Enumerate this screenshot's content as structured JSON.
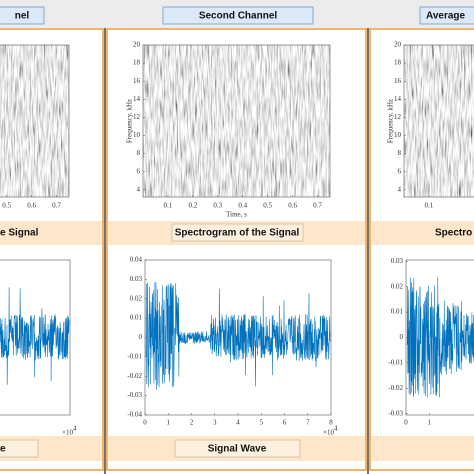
{
  "header": {
    "tabs": [
      "nel",
      "Second Channel",
      "Average"
    ]
  },
  "panels": [
    {
      "spectrogram": {
        "xlim": [
          0,
          0.75
        ],
        "ylim": [
          3.2,
          20
        ],
        "xticks": [
          0.5,
          0.6,
          0.7
        ],
        "yticks": []
      },
      "spectrogram_label": "e Signal",
      "wave": {
        "xlim": [
          0,
          8
        ],
        "ylim": [
          -0.04,
          0.04
        ],
        "xticks": [],
        "yticks": [],
        "x_exponent_base": "×10",
        "x_exponent": "4"
      },
      "wave_label": "e"
    },
    {
      "spectrogram": {
        "xlim": [
          0,
          0.75
        ],
        "ylim": [
          3.2,
          20
        ],
        "xticks": [
          0.1,
          0.2,
          0.3,
          0.4,
          0.5,
          0.6,
          0.7
        ],
        "yticks": [
          4,
          6,
          8,
          10,
          12,
          14,
          16,
          18,
          20
        ],
        "xlabel": "Time, s",
        "ylabel": "Frequency, kHz"
      },
      "spectrogram_label": "Spectrogram of the Signal",
      "wave": {
        "xlim": [
          0,
          8
        ],
        "ylim": [
          -0.04,
          0.04
        ],
        "xticks": [
          0,
          1,
          2,
          3,
          4,
          5,
          6,
          7,
          8
        ],
        "yticks": [
          -0.04,
          -0.03,
          -0.02,
          -0.01,
          0,
          0.01,
          0.02,
          0.03,
          0.04
        ],
        "x_exponent_base": "×10",
        "x_exponent": "4"
      },
      "wave_label": "Signal Wave"
    },
    {
      "spectrogram": {
        "xlim": [
          0,
          0.75
        ],
        "ylim": [
          3.2,
          20
        ],
        "xticks": [
          0.1
        ],
        "yticks": [
          4,
          6,
          8,
          10,
          12,
          14,
          16,
          18,
          20
        ],
        "ylabel": "Frequency, kHz"
      },
      "spectrogram_label": "Spectro",
      "wave": {
        "xlim": [
          0,
          8
        ],
        "ylim": [
          -0.0305,
          0.0305
        ],
        "xticks": [
          0,
          1
        ],
        "yticks": [
          -0.03,
          -0.02,
          -0.01,
          0,
          0.01,
          0.02,
          0.03
        ]
      }
    }
  ]
}
